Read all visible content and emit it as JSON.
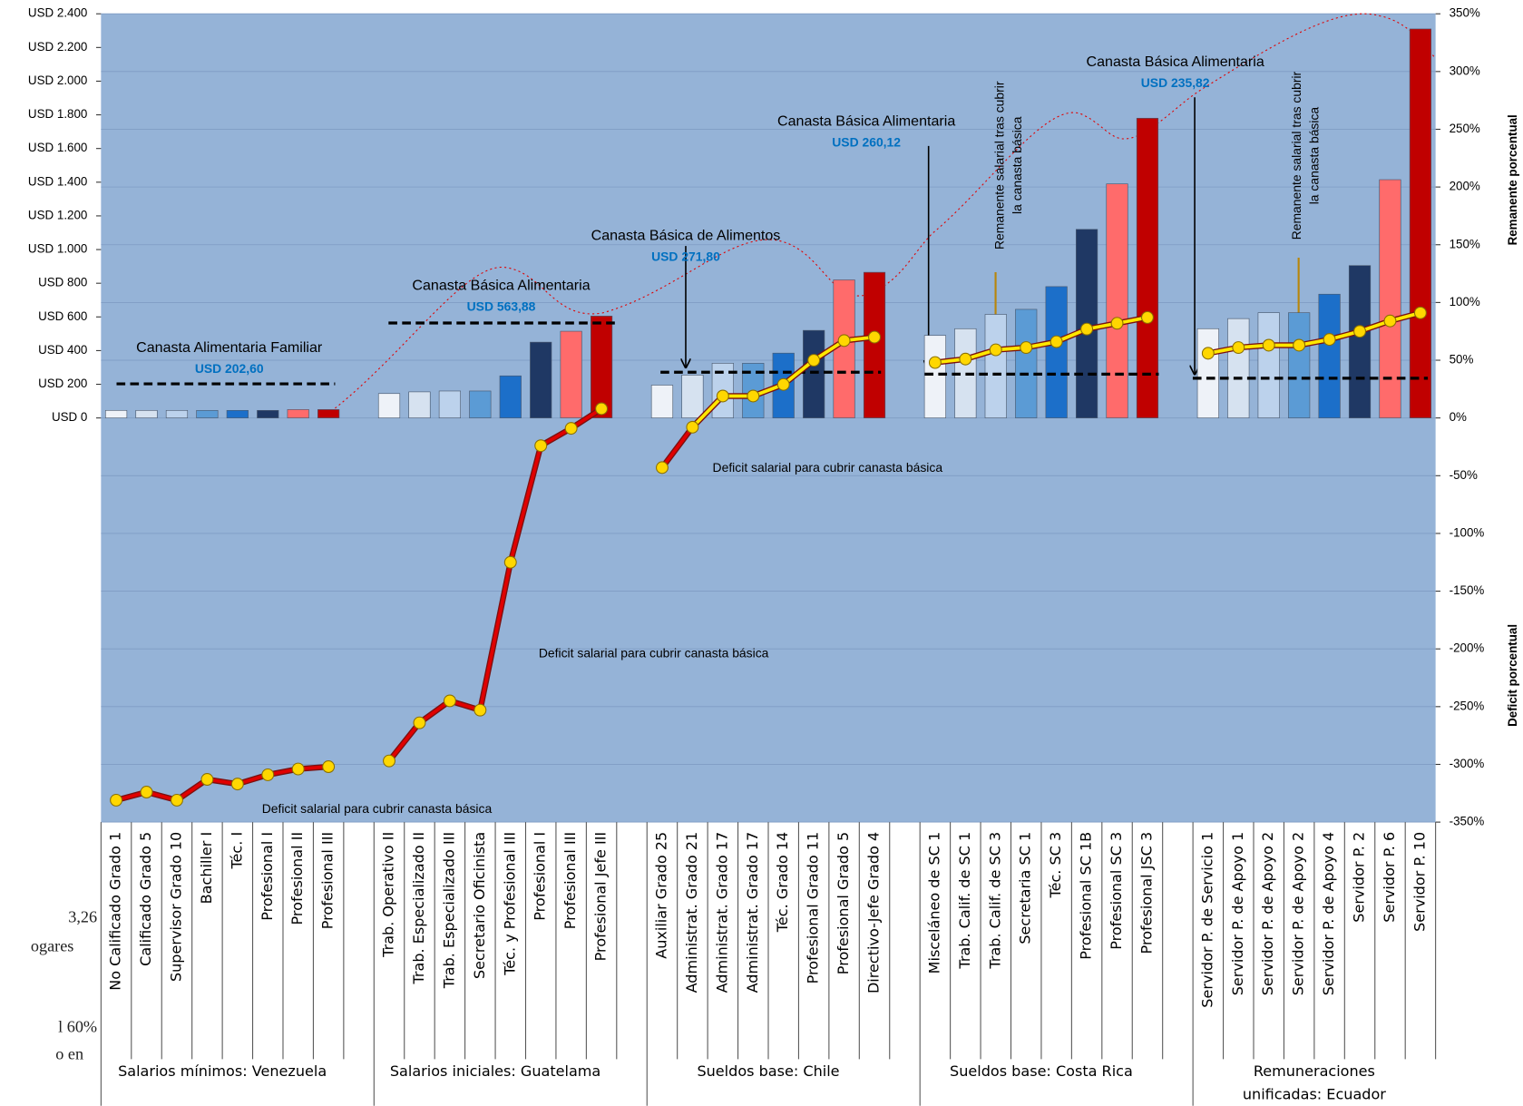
{
  "chart_data": {
    "type": "bar",
    "ylim": [
      -2400,
      2400
    ],
    "yticks": [
      {
        "value": 0,
        "label": "USD 0"
      },
      {
        "value": 200,
        "label": "USD 200"
      },
      {
        "value": 400,
        "label": "USD 400"
      },
      {
        "value": 600,
        "label": "USD 600"
      },
      {
        "value": 800,
        "label": "USD 800"
      },
      {
        "value": 1000,
        "label": "USD 1.000"
      },
      {
        "value": 1200,
        "label": "USD 1.200"
      },
      {
        "value": 1400,
        "label": "USD 1.400"
      },
      {
        "value": 1600,
        "label": "USD 1.600"
      },
      {
        "value": 1800,
        "label": "USD 1.800"
      },
      {
        "value": 2000,
        "label": "USD 2.000"
      },
      {
        "value": 2200,
        "label": "USD 2.200"
      },
      {
        "value": 2400,
        "label": "USD 2.400"
      }
    ],
    "y2lim": [
      -350,
      350
    ],
    "y2ticks": [
      {
        "value": -350,
        "label": "-350%"
      },
      {
        "value": -300,
        "label": "-300%"
      },
      {
        "value": -250,
        "label": "-250%"
      },
      {
        "value": -200,
        "label": "-200%"
      },
      {
        "value": -150,
        "label": "-150%"
      },
      {
        "value": -100,
        "label": "-100%"
      },
      {
        "value": -50,
        "label": "-50%"
      },
      {
        "value": 0,
        "label": "0%"
      },
      {
        "value": 50,
        "label": "50%"
      },
      {
        "value": 100,
        "label": "100%"
      },
      {
        "value": 150,
        "label": "150%"
      },
      {
        "value": 200,
        "label": "200%"
      },
      {
        "value": 250,
        "label": "250%"
      },
      {
        "value": 300,
        "label": "300%"
      },
      {
        "value": 350,
        "label": "350%"
      }
    ],
    "y2_label_positive": "Remanente porcentual",
    "y2_label_negative": "Deficit porcentual",
    "grid": true,
    "plot_color": "#95b3d7",
    "bar_colors": [
      "#eef2f8",
      "#d6e2f0",
      "#bcd2ec",
      "#5b9bd5",
      "#1c6fc9",
      "#1f3864",
      "#ff6b6b",
      "#c00000"
    ],
    "deficit_color": "#e00000",
    "surplus_color": "#ffe800",
    "groups": [
      {
        "name": [
          "Salarios mínimos: Venezuela"
        ],
        "categories": [
          "No Calificado Grado 1",
          "Calificado Grado 5",
          "Supervisor Grado 10",
          "Bachiller I",
          "Téc. I",
          "Profesional I",
          "Profesional II",
          "Profesional III"
        ],
        "values": [
          45,
          45,
          45,
          45,
          45,
          45,
          50,
          50
        ],
        "line_values": [
          -331,
          -324,
          -331,
          -313,
          -317,
          -309,
          -304,
          -302
        ],
        "line_color": "#e00000",
        "basket_title": "Canasta Alimentaria Familiar",
        "basket_value": 202.6,
        "basket_label": "USD 202,60",
        "note": [
          "Deficit salarial para cubrir canasta básica"
        ]
      },
      {
        "name": [
          "Salarios iniciales: Guatelama"
        ],
        "categories": [
          "Trab. Operativo II",
          "Trab. Especializado II",
          "Trab. Especializado III",
          "Secretario Oficinista",
          "Téc. y Profesional III",
          "Profesional I",
          "Profesional III",
          "Profesional Jefe III"
        ],
        "values": [
          145,
          155,
          160,
          160,
          250,
          450,
          515,
          605
        ],
        "line_values": [
          -297,
          -264,
          -245,
          -253,
          -125,
          -24,
          -9,
          8
        ],
        "line_color": "#e00000",
        "basket_title": "Canasta Básica Alimentaria",
        "basket_value": 563.88,
        "basket_label": "USD 563,88",
        "note": [
          "Deficit salarial  para cubrir canasta básica"
        ]
      },
      {
        "name": [
          "Sueldos base: Chile"
        ],
        "categories": [
          "Auxiliar Grado 25",
          "Administrat. Grado 21",
          "Administrat. Grado 17",
          "Administrat. Grado 17",
          "Téc. Grado 14",
          "Profesional Grado 11",
          "Profesional Grado 5",
          "Directivo-Jefe Grado 4"
        ],
        "values": [
          195,
          255,
          325,
          325,
          385,
          520,
          820,
          865
        ],
        "line_values": [
          -43,
          -8,
          19,
          19,
          29,
          50,
          67,
          70
        ],
        "line_color": "#ffe800",
        "basket_title": "Canasta Básica de Alimentos",
        "basket_value": 271.8,
        "basket_label": "USD 271,80",
        "note": [
          "Deficit salarial para cubrir canasta básica"
        ]
      },
      {
        "name": [
          "Sueldos base: Costa Rica"
        ],
        "categories": [
          "Misceláneo de SC 1",
          "Trab. Calif. de SC 1",
          "Trab. Calif. de SC 3",
          "Secretaria SC 1",
          "Téc. SC 3",
          "Profesional SC 1B",
          "Profesional SC 3",
          "Profesional JSC 3"
        ],
        "values": [
          490,
          530,
          615,
          645,
          780,
          1120,
          1390,
          1780
        ],
        "line_values": [
          48,
          51,
          59,
          61,
          66,
          77,
          82,
          87
        ],
        "line_color": "#ffe800",
        "basket_title": "Canasta Básica Alimentaria",
        "basket_value": 260.12,
        "basket_label": "USD 260,12",
        "note": [
          "Remanente salarial tras cubrir",
          "la canasta básica"
        ]
      },
      {
        "name": [
          "Remuneraciones",
          "unificadas: Ecuador"
        ],
        "categories": [
          "Servidor P. de Servicio 1",
          "Servidor P. de Apoyo 1",
          "Servidor P. de Apoyo 2",
          "Servidor P. de Apoyo 2",
          "Servidor P. de Apoyo 4",
          "Servidor P. 2",
          "Servidor P. 6",
          "Servidor P. 10"
        ],
        "values": [
          530,
          590,
          625,
          625,
          735,
          905,
          1415,
          2310
        ],
        "line_values": [
          56,
          61,
          63,
          63,
          68,
          75,
          84,
          91
        ],
        "line_color": "#ffe800",
        "basket_title": "Canasta Básica Alimentaria",
        "basket_value": 235.82,
        "basket_label": "USD 235,82",
        "note": [
          "Remanente salarial tras cubrir",
          "la canasta básica"
        ]
      }
    ]
  },
  "background_fragments": [
    "3,26",
    "ogares",
    "l 60%",
    "o en"
  ]
}
